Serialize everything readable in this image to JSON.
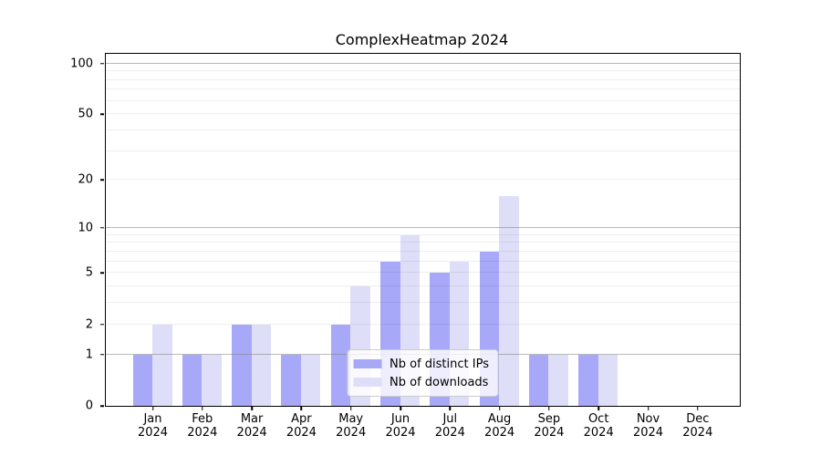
{
  "figure": {
    "title": "ComplexHeatmap 2024"
  },
  "chart_data": {
    "type": "bar",
    "title": "ComplexHeatmap 2024",
    "categories": [
      "Jan",
      "Feb",
      "Mar",
      "Apr",
      "May",
      "Jun",
      "Jul",
      "Aug",
      "Sep",
      "Oct",
      "Nov",
      "Dec"
    ],
    "category_year": "2024",
    "series": [
      {
        "name": "Nb of distinct IPs",
        "color": "#a8a8f8",
        "values": [
          1,
          1,
          2,
          1,
          2,
          6,
          5,
          7,
          1,
          1,
          0,
          0
        ]
      },
      {
        "name": "Nb of downloads",
        "color": "#dedef8",
        "values": [
          2,
          1,
          2,
          1,
          4,
          9,
          6,
          16,
          1,
          1,
          0,
          0
        ]
      }
    ],
    "xlabel": "",
    "ylabel": "",
    "yscale": "log1p",
    "ylim": [
      0,
      114
    ],
    "yticks": [
      0,
      1,
      2,
      5,
      10,
      20,
      50,
      100
    ],
    "major_gridlines": [
      1,
      10,
      100
    ],
    "minor_gridlines": [
      2,
      3,
      4,
      5,
      6,
      7,
      8,
      9,
      20,
      30,
      40,
      50,
      60,
      70,
      80,
      90
    ],
    "grid": true,
    "legend_position": "lower center"
  }
}
